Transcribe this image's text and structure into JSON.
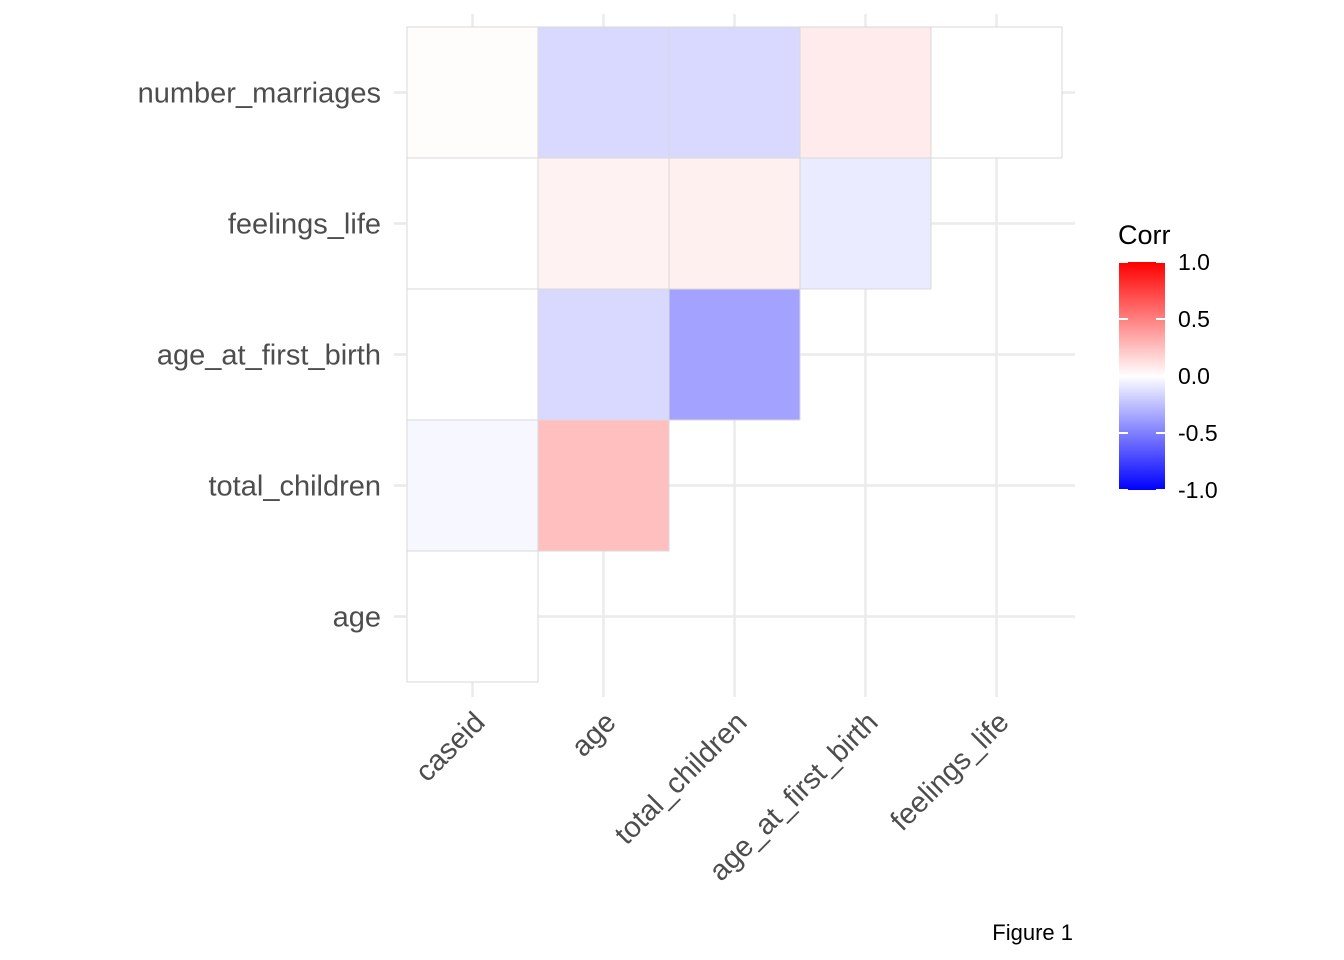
{
  "chart_data": {
    "type": "heatmap",
    "x_categories": [
      "caseid",
      "age",
      "total_children",
      "age_at_first_birth",
      "feelings_life"
    ],
    "y_categories": [
      "age",
      "total_children",
      "age_at_first_birth",
      "feelings_life",
      "number_marriages"
    ],
    "cells": [
      {
        "x": "caseid",
        "y": "age",
        "value": 0.0
      },
      {
        "x": "caseid",
        "y": "total_children",
        "value": -0.03
      },
      {
        "x": "age",
        "y": "total_children",
        "value": 0.25
      },
      {
        "x": "caseid",
        "y": "age_at_first_birth",
        "value": 0.0
      },
      {
        "x": "age",
        "y": "age_at_first_birth",
        "value": -0.15
      },
      {
        "x": "total_children",
        "y": "age_at_first_birth",
        "value": -0.36
      },
      {
        "x": "caseid",
        "y": "feelings_life",
        "value": 0.0
      },
      {
        "x": "age",
        "y": "feelings_life",
        "value": 0.05
      },
      {
        "x": "total_children",
        "y": "feelings_life",
        "value": 0.06
      },
      {
        "x": "age_at_first_birth",
        "y": "feelings_life",
        "value": -0.08
      },
      {
        "x": "caseid",
        "y": "number_marriages",
        "value": 0.01
      },
      {
        "x": "age",
        "y": "number_marriages",
        "value": -0.15
      },
      {
        "x": "total_children",
        "y": "number_marriages",
        "value": -0.15
      },
      {
        "x": "age_at_first_birth",
        "y": "number_marriages",
        "value": 0.08
      },
      {
        "x": "feelings_life",
        "y": "number_marriages",
        "value": 0.0
      }
    ],
    "legend": {
      "title": "Corr",
      "ticks": [
        1.0,
        0.5,
        0.0,
        -0.5,
        -1.0
      ],
      "tick_labels": [
        "1.0",
        "0.5",
        "0.0",
        "-0.5",
        "-1.0"
      ],
      "limits": [
        -1.0,
        1.0
      ],
      "placement": "right"
    },
    "colors": {
      "low": "#0000ff",
      "mid": "#ffffff",
      "high": "#ff0000"
    },
    "grid": true
  },
  "caption": "Figure 1"
}
